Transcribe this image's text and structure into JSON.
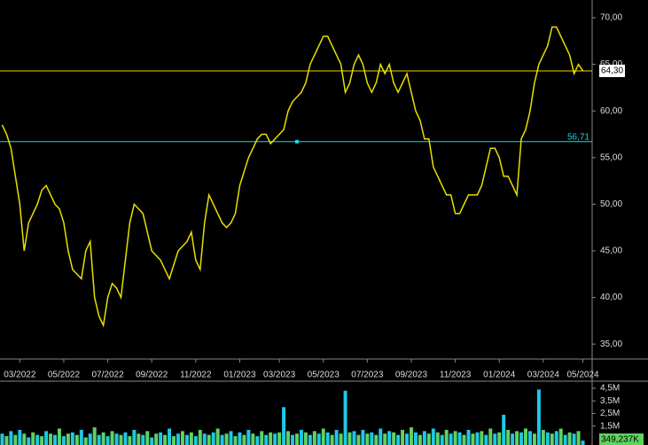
{
  "chart_data": {
    "type": "line",
    "categories": [
      null,
      null,
      null,
      null,
      "03/2022",
      null,
      null,
      null,
      null,
      null,
      null,
      null,
      null,
      null,
      "05/2022",
      null,
      null,
      null,
      null,
      null,
      null,
      null,
      null,
      null,
      "07/2022",
      null,
      null,
      null,
      null,
      null,
      null,
      null,
      null,
      null,
      "09/2022",
      null,
      null,
      null,
      null,
      null,
      null,
      null,
      null,
      null,
      "11/2022",
      null,
      null,
      null,
      null,
      null,
      null,
      null,
      null,
      null,
      "01/2023",
      null,
      null,
      null,
      null,
      null,
      null,
      null,
      null,
      "03/2023",
      null,
      null,
      null,
      null,
      null,
      null,
      null,
      null,
      null,
      "05/2023",
      null,
      null,
      null,
      null,
      null,
      null,
      null,
      null,
      null,
      "07/2023",
      null,
      null,
      null,
      null,
      null,
      null,
      null,
      null,
      null,
      "09/2023",
      null,
      null,
      null,
      null,
      null,
      null,
      null,
      null,
      null,
      "11/2023",
      null,
      null,
      null,
      null,
      null,
      null,
      null,
      null,
      null,
      "01/2024",
      null,
      null,
      null,
      null,
      null,
      null,
      null,
      null,
      null,
      "03/2024",
      null,
      null,
      null,
      null,
      null,
      null,
      null,
      null,
      "05/2024"
    ],
    "series": [
      {
        "color": "#e8e000",
        "values": [
          58.5,
          57.5,
          56,
          53,
          50,
          45,
          48,
          49,
          50,
          51.5,
          52,
          51,
          50,
          49.5,
          48,
          45,
          43,
          42.5,
          42,
          45,
          46,
          40,
          38,
          37,
          40,
          41.5,
          41,
          40,
          44,
          48,
          50,
          49.5,
          49,
          47,
          45,
          44.5,
          44,
          43,
          42,
          43.5,
          45,
          45.5,
          46,
          47,
          44,
          43,
          48,
          51,
          50,
          49,
          48,
          47.5,
          48,
          49,
          52,
          53.5,
          55,
          56,
          57,
          57.5,
          57.5,
          56.5,
          57,
          57.5,
          58,
          60,
          61,
          61.5,
          62,
          63,
          65,
          66,
          67,
          68,
          68,
          67,
          66,
          65,
          62,
          63,
          65,
          66,
          65,
          63,
          62,
          63,
          65,
          64,
          65,
          63,
          62,
          63,
          64,
          62,
          60,
          59,
          57,
          57,
          54,
          53,
          52,
          51,
          51,
          49,
          49,
          50,
          51,
          51,
          51,
          52,
          54,
          56,
          56,
          55,
          53,
          53,
          52,
          51,
          57,
          58,
          60,
          63,
          65,
          66,
          67,
          69,
          69,
          68,
          67,
          66,
          64,
          65,
          64.3
        ]
      }
    ],
    "ylim": [
      33.4,
      71.9
    ],
    "yticks": [
      {
        "value": 35,
        "label": "35,00"
      },
      {
        "value": 40,
        "label": "40,00"
      },
      {
        "value": 45,
        "label": "45,00"
      },
      {
        "value": 50,
        "label": "50,00"
      },
      {
        "value": 55,
        "label": "55,00"
      },
      {
        "value": 60,
        "label": "60,00"
      },
      {
        "value": 65,
        "label": "65,00"
      },
      {
        "value": 70,
        "label": "70,00"
      }
    ],
    "hlines": [
      {
        "value": 64.3,
        "label": "64,30",
        "color": "#e8d800"
      },
      {
        "value": 56.71,
        "label": "56,71",
        "color": "#19d8e8"
      }
    ],
    "volume": {
      "type": "bar",
      "colors": [
        "#1ec8e6",
        "#5fd35f"
      ],
      "values": [
        0.9,
        0.7,
        1.1,
        0.8,
        1.2,
        0.9,
        0.6,
        1.0,
        0.8,
        0.7,
        1.1,
        0.9,
        0.8,
        1.3,
        0.7,
        0.9,
        1.0,
        0.8,
        1.2,
        0.6,
        0.9,
        1.4,
        0.8,
        1.0,
        0.7,
        1.1,
        0.9,
        0.8,
        1.0,
        0.7,
        1.2,
        0.9,
        0.8,
        1.1,
        0.6,
        0.9,
        1.0,
        0.8,
        1.3,
        0.7,
        0.9,
        1.1,
        0.8,
        1.0,
        0.7,
        1.2,
        0.9,
        0.8,
        1.0,
        1.3,
        0.8,
        0.9,
        1.1,
        0.7,
        1.0,
        0.8,
        1.2,
        0.9,
        0.7,
        1.1,
        0.8,
        1.0,
        0.9,
        1.0,
        3.0,
        1.1,
        0.8,
        0.9,
        1.2,
        1.0,
        0.8,
        1.1,
        0.9,
        1.3,
        1.0,
        0.8,
        1.2,
        0.9,
        4.3,
        1.0,
        1.1,
        0.8,
        1.2,
        0.9,
        1.0,
        0.8,
        1.3,
        0.9,
        1.1,
        1.0,
        0.8,
        1.2,
        0.9,
        1.4,
        1.0,
        0.8,
        1.1,
        0.9,
        1.3,
        1.0,
        0.8,
        1.2,
        0.9,
        1.1,
        1.0,
        0.8,
        1.2,
        0.9,
        1.0,
        1.1,
        0.8,
        1.3,
        0.9,
        1.0,
        2.4,
        1.2,
        0.9,
        1.1,
        1.0,
        1.3,
        1.1,
        0.9,
        4.4,
        1.2,
        1.0,
        0.9,
        1.1,
        1.3,
        0.8,
        1.0,
        0.9,
        1.1,
        0.349237
      ],
      "value_labels": [
        null,
        null,
        null,
        null,
        null,
        null,
        null,
        null,
        null,
        null,
        null,
        null,
        null,
        null,
        null,
        null,
        null,
        null,
        null,
        null,
        null,
        null,
        null,
        null,
        null,
        null,
        null,
        null,
        null,
        null,
        null,
        null,
        null,
        null,
        null,
        null,
        null,
        null,
        null,
        null,
        null,
        null,
        null,
        null,
        null,
        null,
        null,
        null,
        null,
        null,
        null,
        null,
        null,
        null,
        null,
        null,
        null,
        null,
        null,
        null,
        null,
        null,
        null,
        null,
        null,
        null,
        null,
        null,
        null,
        null,
        null,
        null,
        null,
        null,
        null,
        null,
        null,
        null,
        null,
        null,
        null,
        null,
        null,
        null,
        null,
        null,
        null,
        null,
        null,
        null,
        null,
        null,
        null,
        null,
        null,
        null,
        null,
        null,
        null,
        null,
        null,
        null,
        null,
        null,
        null,
        null,
        null,
        null,
        null,
        null,
        null,
        null,
        null,
        null,
        null,
        null,
        null,
        null,
        null,
        null,
        null,
        null,
        null,
        null,
        null,
        null,
        null,
        null,
        null,
        null,
        null,
        null,
        "349,237K"
      ],
      "ylim": [
        0,
        5.06
      ],
      "yticks": [
        {
          "value": 1.5,
          "label": "1,5M"
        },
        {
          "value": 2.5,
          "label": "2,5M"
        },
        {
          "value": 3.5,
          "label": "3,5M"
        },
        {
          "value": 4.5,
          "label": "4,5M"
        }
      ]
    }
  }
}
